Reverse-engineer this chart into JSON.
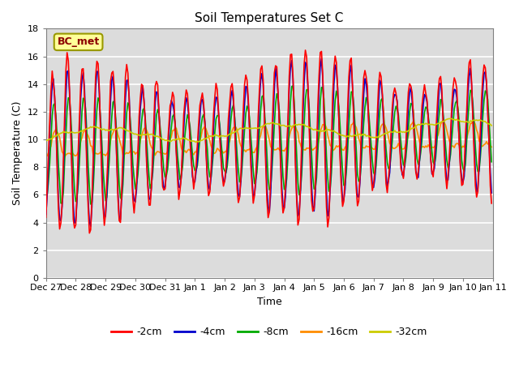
{
  "title": "Soil Temperatures Set C",
  "xlabel": "Time",
  "ylabel": "Soil Temperature (C)",
  "ylim": [
    0,
    18
  ],
  "yticks": [
    0,
    2,
    4,
    6,
    8,
    10,
    12,
    14,
    16,
    18
  ],
  "annotation": "BC_met",
  "annotation_color": "#8B0000",
  "annotation_bg": "#FFFF99",
  "background_color": "#DCDCDC",
  "series_colors": {
    "-2cm": "#FF0000",
    "-4cm": "#0000CC",
    "-8cm": "#00AA00",
    "-16cm": "#FF8C00",
    "-32cm": "#CCCC00"
  },
  "x_labels": [
    "Dec 27",
    "Dec 28",
    "Dec 29",
    "Dec 30",
    "Dec 31",
    "Jan 1",
    "Jan 2",
    "Jan 3",
    "Jan 4",
    "Jan 5",
    "Jan 6",
    "Jan 7",
    "Jan 8",
    "Jan 9",
    "Jan 10",
    "Jan 11"
  ],
  "legend_entries": [
    "-2cm",
    "-4cm",
    "-8cm",
    "-16cm",
    "-32cm"
  ]
}
